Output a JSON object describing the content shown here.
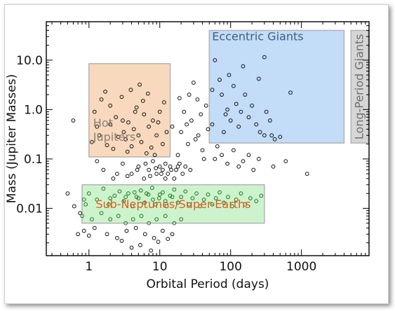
{
  "chart_data": {
    "type": "scatter",
    "title": "",
    "xlabel": "Orbital Period (days)",
    "ylabel": "Mass (Jupiter Masses)",
    "xscale": "log",
    "yscale": "log",
    "xlim": [
      0.25,
      9000
    ],
    "ylim": [
      0.0011,
      60
    ],
    "xticks": [
      1,
      10,
      100,
      1000
    ],
    "xtick_labels": [
      "1",
      "10",
      "100",
      "1000"
    ],
    "yticks": [
      0.01,
      0.1,
      1,
      10
    ],
    "ytick_labels": [
      "0.01",
      "0.1",
      "1.0",
      "10.0"
    ],
    "grid": false,
    "marker": "open-circle",
    "regions": [
      {
        "name": "Hot Jupiters",
        "label_lines": [
          "Hot",
          "Jupiters"
        ],
        "x": [
          1,
          14
        ],
        "y": [
          0.11,
          8.5
        ],
        "fill": "#f9d9bd",
        "text_color": "#8a8078"
      },
      {
        "name": "Eccentric Giants",
        "label_lines": [
          "Eccentric Giants"
        ],
        "x": [
          50,
          4000
        ],
        "y": [
          0.21,
          40
        ],
        "fill": "#c3dcf7",
        "text_color": "#3f5d86"
      },
      {
        "name": "Long-Period Giants",
        "label_lines": [
          "Long-Period Giants"
        ],
        "x": [
          5000,
          8800
        ],
        "y": [
          0.21,
          40
        ],
        "fill": "#d6d6d6",
        "text_color": "#6f6f6f",
        "vertical": true
      },
      {
        "name": "Sub-Neptunes/Super-Earths",
        "label_lines": [
          "Sub-Neptunes/Super-Earths"
        ],
        "x": [
          0.8,
          300
        ],
        "y": [
          0.005,
          0.03
        ],
        "fill": "#cdf3cd",
        "text_color": "#e05a1e"
      }
    ],
    "point_colors": {
      "default": "#111111",
      "in_small_region": "#1a7a1a"
    },
    "series": [
      {
        "name": "",
        "points": [
          [
            0.6,
            0.6
          ],
          [
            0.5,
            0.02
          ],
          [
            0.62,
            0.011
          ],
          [
            0.7,
            0.003
          ],
          [
            0.75,
            0.008
          ],
          [
            0.85,
            0.015
          ],
          [
            1.2,
            0.9
          ],
          [
            1.3,
            0.45
          ],
          [
            1.5,
            1.6
          ],
          [
            1.7,
            2.3
          ],
          [
            2.0,
            1.2
          ],
          [
            2.4,
            0.7
          ],
          [
            2.9,
            1.8
          ],
          [
            3.1,
            0.35
          ],
          [
            3.3,
            0.25
          ],
          [
            3.6,
            0.55
          ],
          [
            4.0,
            0.18
          ],
          [
            4.3,
            0.4
          ],
          [
            4.7,
            1.1
          ],
          [
            5.0,
            0.3
          ],
          [
            5.5,
            0.22
          ],
          [
            6.0,
            0.8
          ],
          [
            6.5,
            0.13
          ],
          [
            7.0,
            0.45
          ],
          [
            7.6,
            0.17
          ],
          [
            8.0,
            0.6
          ],
          [
            9.0,
            0.3
          ],
          [
            10.0,
            0.9
          ],
          [
            11.0,
            0.2
          ],
          [
            12.5,
            0.35
          ],
          [
            1.1,
            0.22
          ],
          [
            1.4,
            0.3
          ],
          [
            1.8,
            0.19
          ],
          [
            2.2,
            0.16
          ],
          [
            2.6,
            0.28
          ],
          [
            3.5,
            0.14
          ],
          [
            3.9,
            2.5
          ],
          [
            5.2,
            3.2
          ],
          [
            5.8,
            1.5
          ],
          [
            6.8,
            2.1
          ],
          [
            3.0,
            0.6
          ],
          [
            2.0,
            0.5
          ],
          [
            4.5,
            0.9
          ],
          [
            9.5,
            0.55
          ],
          [
            11.5,
            1.4
          ],
          [
            8.5,
            0.12
          ],
          [
            15,
            0.45
          ],
          [
            18,
            0.12
          ],
          [
            22,
            0.9
          ],
          [
            25,
            0.2
          ],
          [
            28,
            0.6
          ],
          [
            30,
            3.5
          ],
          [
            35,
            0.3
          ],
          [
            40,
            0.15
          ],
          [
            45,
            1.2
          ],
          [
            20,
            0.35
          ],
          [
            24,
            0.5
          ],
          [
            32,
            0.25
          ],
          [
            38,
            0.8
          ],
          [
            42,
            0.1
          ],
          [
            48,
            0.4
          ],
          [
            26,
            2.0
          ],
          [
            34,
            1.6
          ],
          [
            19,
            1.7
          ],
          [
            55,
            0.5
          ],
          [
            60,
            0.1
          ],
          [
            65,
            0.18
          ],
          [
            75,
            0.12
          ],
          [
            80,
            0.35
          ],
          [
            90,
            0.08
          ],
          [
            110,
            0.15
          ],
          [
            130,
            0.07
          ],
          [
            150,
            0.09
          ],
          [
            180,
            0.12
          ],
          [
            210,
            0.06
          ],
          [
            250,
            0.1
          ],
          [
            300,
            0.3
          ],
          [
            400,
            0.07
          ],
          [
            600,
            0.09
          ],
          [
            1200,
            0.05
          ],
          [
            60,
            10
          ],
          [
            70,
            4
          ],
          [
            75,
            2
          ],
          [
            85,
            0.8
          ],
          [
            95,
            5
          ],
          [
            100,
            0.6
          ],
          [
            110,
            3
          ],
          [
            120,
            1.3
          ],
          [
            140,
            0.9
          ],
          [
            160,
            2
          ],
          [
            180,
            0.7
          ],
          [
            200,
            1.2
          ],
          [
            230,
            0.5
          ],
          [
            260,
            0.35
          ],
          [
            300,
            11.5
          ],
          [
            320,
            0.9
          ],
          [
            380,
            0.3
          ],
          [
            420,
            0.25
          ],
          [
            500,
            0.28
          ],
          [
            700,
            2.2
          ],
          [
            250,
            4.2
          ],
          [
            90,
            1.0
          ],
          [
            150,
            7.5
          ],
          [
            360,
            0.6
          ],
          [
            55,
            2.5
          ],
          [
            130,
            0.45
          ],
          [
            4,
            0.05
          ],
          [
            5,
            0.07
          ],
          [
            6,
            0.04
          ],
          [
            7,
            0.06
          ],
          [
            8,
            0.09
          ],
          [
            9,
            0.05
          ],
          [
            10,
            0.07
          ],
          [
            11,
            0.06
          ],
          [
            12,
            0.08
          ],
          [
            13,
            0.05
          ],
          [
            14,
            0.07
          ],
          [
            16,
            0.04
          ],
          [
            17,
            0.06
          ],
          [
            19,
            0.08
          ],
          [
            21,
            0.05
          ],
          [
            23,
            0.07
          ],
          [
            27,
            0.06
          ],
          [
            3.5,
            0.045
          ],
          [
            4.8,
            0.06
          ],
          [
            6.3,
            0.08
          ],
          [
            7.3,
            0.045
          ],
          [
            8.8,
            0.065
          ],
          [
            10.5,
            0.05
          ],
          [
            12,
            0.04
          ],
          [
            14.5,
            0.06
          ],
          [
            18,
            0.07
          ],
          [
            2.5,
            0.05
          ],
          [
            3.0,
            0.08
          ],
          [
            2.2,
            0.04
          ],
          [
            1.6,
            0.06
          ],
          [
            1.3,
            0.09
          ],
          [
            1.0,
            0.02
          ],
          [
            1.3,
            0.015
          ],
          [
            1.6,
            0.025
          ],
          [
            1.9,
            0.012
          ],
          [
            2.3,
            0.018
          ],
          [
            2.7,
            0.022
          ],
          [
            3.1,
            0.014
          ],
          [
            3.6,
            0.02
          ],
          [
            4.1,
            0.011
          ],
          [
            4.7,
            0.017
          ],
          [
            5.4,
            0.023
          ],
          [
            6.1,
            0.013
          ],
          [
            6.9,
            0.019
          ],
          [
            7.8,
            0.026
          ],
          [
            8.7,
            0.012
          ],
          [
            9.8,
            0.016
          ],
          [
            11,
            0.021
          ],
          [
            12.5,
            0.011
          ],
          [
            14,
            0.018
          ],
          [
            16,
            0.024
          ],
          [
            18,
            0.013
          ],
          [
            20,
            0.017
          ],
          [
            23,
            0.022
          ],
          [
            26,
            0.012
          ],
          [
            29,
            0.016
          ],
          [
            33,
            0.02
          ],
          [
            37,
            0.011
          ],
          [
            42,
            0.015
          ],
          [
            48,
            0.019
          ],
          [
            55,
            0.012
          ],
          [
            62,
            0.016
          ],
          [
            70,
            0.021
          ],
          [
            80,
            0.013
          ],
          [
            92,
            0.017
          ],
          [
            105,
            0.011
          ],
          [
            120,
            0.015
          ],
          [
            140,
            0.02
          ],
          [
            160,
            0.012
          ],
          [
            190,
            0.016
          ],
          [
            230,
            0.014
          ],
          [
            270,
            0.018
          ],
          [
            5.0,
            0.016
          ],
          [
            6.5,
            0.02
          ],
          [
            8.0,
            0.015
          ],
          [
            10,
            0.019
          ],
          [
            12,
            0.014
          ],
          [
            15,
            0.017
          ],
          [
            3.3,
            0.017
          ],
          [
            4.4,
            0.021
          ],
          [
            2.0,
            0.016
          ],
          [
            0.9,
            0.012
          ],
          [
            0.8,
            0.007
          ],
          [
            1.1,
            0.006
          ],
          [
            1.5,
            0.008
          ],
          [
            2.0,
            0.006
          ],
          [
            2.6,
            0.007
          ],
          [
            3.3,
            0.005
          ],
          [
            4.2,
            0.006
          ],
          [
            5.5,
            0.007
          ],
          [
            7.0,
            0.005
          ],
          [
            9.0,
            0.006
          ],
          [
            12,
            0.007
          ],
          [
            16,
            0.005
          ],
          [
            20,
            0.006
          ],
          [
            1.2,
            0.004
          ],
          [
            1.8,
            0.003
          ],
          [
            2.5,
            0.0025
          ],
          [
            3.4,
            0.0035
          ],
          [
            4.6,
            0.004
          ],
          [
            6.2,
            0.003
          ],
          [
            8.3,
            0.0025
          ],
          [
            11,
            0.0035
          ],
          [
            15,
            0.003
          ],
          [
            1.0,
            0.0028
          ],
          [
            0.85,
            0.0035
          ],
          [
            2.9,
            0.0022
          ],
          [
            5.3,
            0.0018
          ],
          [
            7.5,
            0.0014
          ],
          [
            9.5,
            0.0021
          ],
          [
            13,
            0.0024
          ],
          [
            4.0,
            0.0016
          ]
        ]
      }
    ]
  }
}
